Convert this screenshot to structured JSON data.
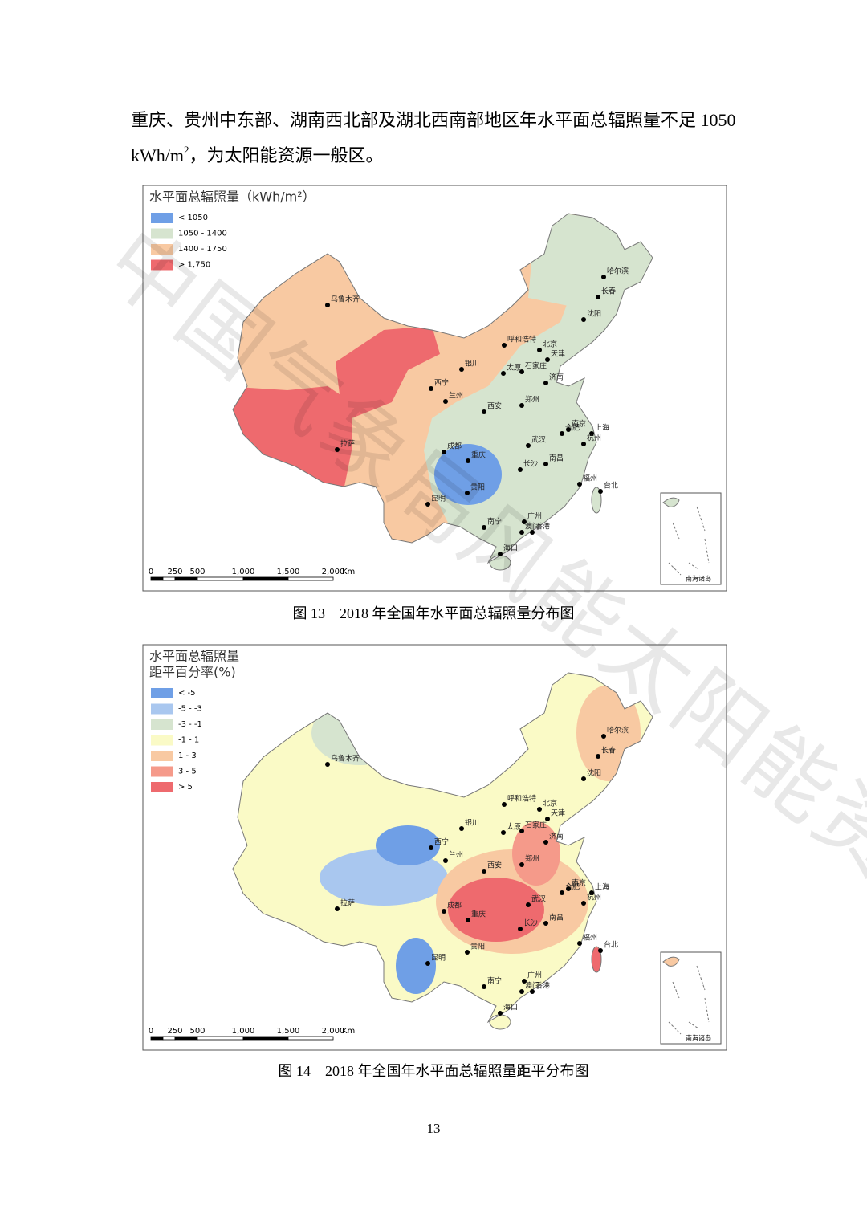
{
  "paragraph": {
    "line1": "重庆、贵州中东部、湖南西北部及湖北西南部地区年水平面总辐照量不足 1050",
    "line2_before": "kWh/m",
    "line2_sup": "2",
    "line2_after": "，为太阳能资源一般区。"
  },
  "figure13": {
    "legend_title": [
      "水平面总辐照量（kWh/m²）"
    ],
    "legend": [
      {
        "label": "< 1050",
        "color": "#6f9fe6"
      },
      {
        "label": "1050 - 1400",
        "color": "#d6e4cf"
      },
      {
        "label": "1400 - 1750",
        "color": "#f8c9a2"
      },
      {
        "label": "> 1,750",
        "color": "#ee6a6e"
      }
    ],
    "cities": [
      "乌鲁木齐",
      "拉萨",
      "西宁",
      "兰州",
      "银川",
      "呼和浩特",
      "北京",
      "天津",
      "石家庄",
      "太原",
      "济南",
      "郑州",
      "西安",
      "合肥",
      "南京",
      "上海",
      "杭州",
      "武汉",
      "成都",
      "重庆",
      "长沙",
      "南昌",
      "贵阳",
      "福州",
      "台北",
      "昆明",
      "南宁",
      "广州",
      "香港",
      "澳门",
      "海口",
      "哈尔滨",
      "长春",
      "沈阳"
    ],
    "scale": [
      "0",
      "250",
      "500",
      "1,000",
      "1,500",
      "2,000",
      "Km"
    ],
    "inset": "南海诸岛",
    "caption": "图 13　2018 年全国年水平面总辐照量分布图"
  },
  "figure14": {
    "legend_title": [
      "水平面总辐照量",
      "距平百分率(%)"
    ],
    "legend": [
      {
        "label": "< -5",
        "color": "#6f9fe6"
      },
      {
        "label": "-5 - -3",
        "color": "#a9c7ef"
      },
      {
        "label": "-3 - -1",
        "color": "#d6e4cf"
      },
      {
        "label": "-1 - 1",
        "color": "#fafac6"
      },
      {
        "label": "1 - 3",
        "color": "#f8c9a2"
      },
      {
        "label": "3 - 5",
        "color": "#f59a8a"
      },
      {
        "label": "> 5",
        "color": "#ee6a6e"
      }
    ],
    "cities": [
      "乌鲁木齐",
      "拉萨",
      "西宁",
      "兰州",
      "银川",
      "呼和浩特",
      "北京",
      "天津",
      "石家庄",
      "太原",
      "济南",
      "郑州",
      "西安",
      "合肥",
      "南京",
      "上海",
      "杭州",
      "武汉",
      "成都",
      "重庆",
      "长沙",
      "南昌",
      "贵阳",
      "福州",
      "台北",
      "昆明",
      "南宁",
      "广州",
      "香港",
      "澳门",
      "海口",
      "哈尔滨",
      "长春",
      "沈阳"
    ],
    "scale": [
      "0",
      "250",
      "500",
      "1,000",
      "1,500",
      "2,000",
      "Km"
    ],
    "inset": "南海诸岛",
    "caption": "图 14　2018 年全国年水平面总辐照量距平分布图"
  },
  "watermark": "中国气象局风能太阳能资源中心",
  "page_number": "13"
}
